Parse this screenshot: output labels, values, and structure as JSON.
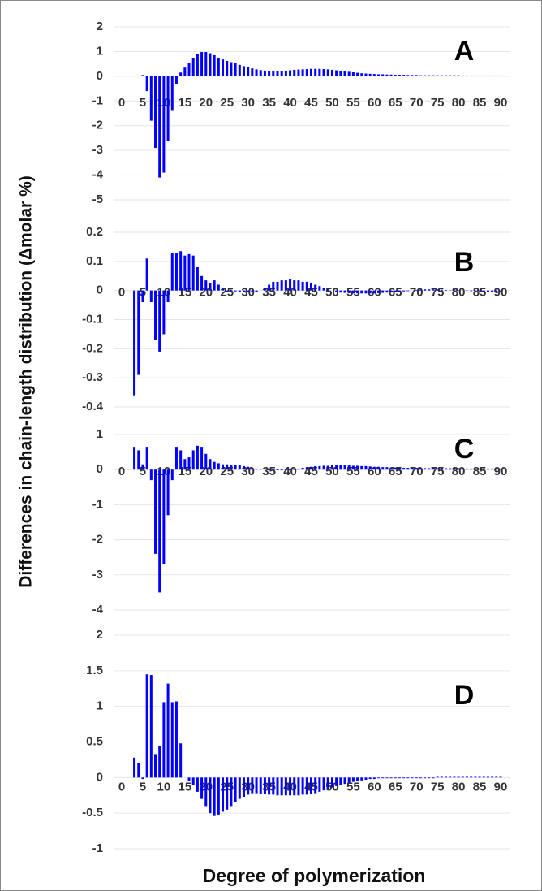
{
  "y_axis_label": "Differences in chain-length distribution  (Δmolar %)",
  "x_axis_label": "Degree of polymerization",
  "chart_data": [
    {
      "type": "bar",
      "annotation": "A",
      "color": "#0000ff",
      "grid": true,
      "xlim": [
        0,
        90
      ],
      "xticks": [
        0,
        5,
        10,
        15,
        20,
        25,
        30,
        35,
        40,
        45,
        50,
        55,
        60,
        65,
        70,
        75,
        80,
        85,
        90
      ],
      "ylim": [
        -5,
        2
      ],
      "yticks": [
        -5,
        -4,
        -3,
        -2,
        -1,
        0,
        1,
        2
      ],
      "x": [
        1,
        2,
        3,
        4,
        5,
        6,
        7,
        8,
        9,
        10,
        11,
        12,
        13,
        14,
        15,
        16,
        17,
        18,
        19,
        20,
        21,
        22,
        23,
        24,
        25,
        26,
        27,
        28,
        29,
        30,
        31,
        32,
        33,
        34,
        35,
        36,
        37,
        38,
        39,
        40,
        41,
        42,
        43,
        44,
        45,
        46,
        47,
        48,
        49,
        50,
        51,
        52,
        53,
        54,
        55,
        56,
        57,
        58,
        59,
        60,
        61,
        62,
        63,
        64,
        65,
        66,
        67,
        68,
        69,
        70,
        71,
        72,
        73,
        74,
        75,
        76,
        77,
        78,
        79,
        80,
        81,
        82,
        83,
        84,
        85,
        86,
        87,
        88,
        89,
        90
      ],
      "values": [
        0,
        0,
        0,
        0,
        0.05,
        -0.6,
        -1.8,
        -2.9,
        -4.1,
        -3.9,
        -2.6,
        -1.4,
        -0.3,
        0.15,
        0.35,
        0.55,
        0.75,
        0.9,
        0.98,
        0.98,
        0.93,
        0.85,
        0.75,
        0.68,
        0.62,
        0.57,
        0.52,
        0.46,
        0.41,
        0.36,
        0.32,
        0.28,
        0.25,
        0.23,
        0.22,
        0.21,
        0.21,
        0.22,
        0.23,
        0.24,
        0.26,
        0.27,
        0.28,
        0.29,
        0.3,
        0.3,
        0.3,
        0.29,
        0.28,
        0.26,
        0.24,
        0.22,
        0.2,
        0.18,
        0.16,
        0.14,
        0.12,
        0.11,
        0.1,
        0.09,
        0.08,
        0.08,
        0.07,
        0.07,
        0.06,
        0.06,
        0.06,
        0.05,
        0.05,
        0.05,
        0.04,
        0.04,
        0.04,
        0.04,
        0.04,
        0.04,
        0.04,
        0.04,
        0.04,
        0.04,
        0.03,
        0.03,
        0.03,
        0.03,
        0.03,
        0.03,
        0.03,
        0.03,
        0.03,
        0.03
      ]
    },
    {
      "type": "bar",
      "annotation": "B",
      "color": "#0000ff",
      "grid": true,
      "xlim": [
        0,
        90
      ],
      "xticks": [
        0,
        5,
        10,
        15,
        20,
        25,
        30,
        35,
        40,
        45,
        50,
        55,
        60,
        65,
        70,
        75,
        80,
        85,
        90
      ],
      "ylim": [
        -0.4,
        0.2
      ],
      "yticks": [
        -0.4,
        -0.3,
        -0.2,
        -0.1,
        0,
        0.1,
        0.2
      ],
      "x": [
        1,
        2,
        3,
        4,
        5,
        6,
        7,
        8,
        9,
        10,
        11,
        12,
        13,
        14,
        15,
        16,
        17,
        18,
        19,
        20,
        21,
        22,
        23,
        24,
        25,
        26,
        27,
        28,
        29,
        30,
        31,
        32,
        33,
        34,
        35,
        36,
        37,
        38,
        39,
        40,
        41,
        42,
        43,
        44,
        45,
        46,
        47,
        48,
        49,
        50,
        51,
        52,
        53,
        54,
        55,
        56,
        57,
        58,
        59,
        60,
        61,
        62,
        63,
        64,
        65,
        66,
        67,
        68,
        69,
        70,
        71,
        72,
        73,
        74,
        75,
        76,
        77,
        78,
        79,
        80,
        81,
        82,
        83,
        84,
        85,
        86,
        87,
        88,
        89,
        90
      ],
      "values": [
        0,
        0,
        -0.36,
        -0.29,
        -0.04,
        0.11,
        -0.04,
        -0.17,
        -0.21,
        -0.15,
        -0.04,
        0.13,
        0.13,
        0.135,
        0.12,
        0.125,
        0.12,
        0.08,
        0.05,
        0.035,
        0.025,
        0.035,
        0.02,
        0.005,
        -0.005,
        0.003,
        -0.003,
        -0.005,
        -0.006,
        -0.005,
        -0.005,
        -0.004,
        0,
        0.01,
        0.02,
        0.03,
        0.03,
        0.035,
        0.035,
        0.04,
        0.035,
        0.035,
        0.03,
        0.03,
        0.025,
        0.02,
        0.015,
        0.01,
        0.005,
        0,
        -0.005,
        -0.007,
        -0.008,
        -0.009,
        -0.01,
        -0.01,
        -0.01,
        -0.01,
        -0.01,
        -0.01,
        -0.009,
        -0.008,
        -0.007,
        -0.006,
        -0.005,
        -0.004,
        -0.003,
        -0.002,
        0,
        0.002,
        0.003,
        0.004,
        0.004,
        0.004,
        0.004,
        0.003,
        0.002,
        0.001,
        0.004,
        0.001,
        0,
        -0.001,
        -0.002,
        -0.002,
        -0.003,
        -0.003,
        -0.004,
        -0.004,
        -0.005,
        -0.003
      ]
    },
    {
      "type": "bar",
      "annotation": "C",
      "color": "#0000ff",
      "grid": true,
      "xlim": [
        0,
        90
      ],
      "xticks": [
        0,
        5,
        10,
        15,
        20,
        25,
        30,
        35,
        40,
        45,
        50,
        55,
        60,
        65,
        70,
        75,
        80,
        85,
        90
      ],
      "ylim": [
        -4,
        1
      ],
      "yticks": [
        -4,
        -3,
        -2,
        -1,
        0,
        1
      ],
      "x": [
        1,
        2,
        3,
        4,
        5,
        6,
        7,
        8,
        9,
        10,
        11,
        12,
        13,
        14,
        15,
        16,
        17,
        18,
        19,
        20,
        21,
        22,
        23,
        24,
        25,
        26,
        27,
        28,
        29,
        30,
        31,
        32,
        33,
        34,
        35,
        36,
        37,
        38,
        39,
        40,
        41,
        42,
        43,
        44,
        45,
        46,
        47,
        48,
        49,
        50,
        51,
        52,
        53,
        54,
        55,
        56,
        57,
        58,
        59,
        60,
        61,
        62,
        63,
        64,
        65,
        66,
        67,
        68,
        69,
        70,
        71,
        72,
        73,
        74,
        75,
        76,
        77,
        78,
        79,
        80,
        81,
        82,
        83,
        84,
        85,
        86,
        87,
        88,
        89,
        90
      ],
      "values": [
        0,
        0,
        0.65,
        0.55,
        0.15,
        0.65,
        -0.3,
        -2.4,
        -3.5,
        -2.7,
        -1.3,
        -0.3,
        0.65,
        0.55,
        0.3,
        0.35,
        0.55,
        0.68,
        0.65,
        0.45,
        0.3,
        0.22,
        0.18,
        0.15,
        0.15,
        0.14,
        0.13,
        0.12,
        0.1,
        0.08,
        0.05,
        0.03,
        0.01,
        0,
        -0.02,
        -0.02,
        -0.02,
        -0.02,
        -0.02,
        -0.02,
        -0.01,
        0.03,
        0.05,
        0.07,
        0.08,
        0.1,
        0.1,
        0.11,
        0.11,
        0.12,
        0.12,
        0.12,
        0.12,
        0.12,
        0.11,
        0.11,
        0.1,
        0.1,
        0.09,
        0.08,
        0.08,
        0.07,
        0.07,
        0.06,
        0.06,
        0.05,
        0.05,
        0.05,
        0.05,
        0.05,
        0.04,
        0.04,
        0.04,
        0.04,
        0.04,
        0.04,
        0.04,
        0.04,
        0.04,
        0.04,
        0.03,
        0.03,
        0.03,
        0.03,
        0.03,
        0.03,
        0.03,
        0.03,
        0.03,
        0.03
      ]
    },
    {
      "type": "bar",
      "annotation": "D",
      "color": "#0000ff",
      "grid": true,
      "xlim": [
        0,
        90
      ],
      "xticks": [
        0,
        5,
        10,
        15,
        20,
        25,
        30,
        35,
        40,
        45,
        50,
        55,
        60,
        65,
        70,
        75,
        80,
        85,
        90
      ],
      "ylim": [
        -1,
        2
      ],
      "yticks": [
        -1,
        -0.5,
        0,
        0.5,
        1,
        1.5,
        2
      ],
      "x": [
        1,
        2,
        3,
        4,
        5,
        6,
        7,
        8,
        9,
        10,
        11,
        12,
        13,
        14,
        15,
        16,
        17,
        18,
        19,
        20,
        21,
        22,
        23,
        24,
        25,
        26,
        27,
        28,
        29,
        30,
        31,
        32,
        33,
        34,
        35,
        36,
        37,
        38,
        39,
        40,
        41,
        42,
        43,
        44,
        45,
        46,
        47,
        48,
        49,
        50,
        51,
        52,
        53,
        54,
        55,
        56,
        57,
        58,
        59,
        60,
        61,
        62,
        63,
        64,
        65,
        66,
        67,
        68,
        69,
        70,
        71,
        72,
        73,
        74,
        75,
        76,
        77,
        78,
        79,
        80,
        81,
        82,
        83,
        84,
        85,
        86,
        87,
        88,
        89,
        90
      ],
      "values": [
        0,
        0,
        0.28,
        0.2,
        -0.02,
        1.45,
        1.44,
        0.33,
        0.44,
        1.06,
        1.32,
        1.06,
        1.07,
        0.48,
        0,
        -0.05,
        -0.1,
        -0.2,
        -0.3,
        -0.4,
        -0.5,
        -0.54,
        -0.52,
        -0.48,
        -0.45,
        -0.4,
        -0.35,
        -0.3,
        -0.27,
        -0.24,
        -0.22,
        -0.22,
        -0.23,
        -0.23,
        -0.24,
        -0.24,
        -0.25,
        -0.25,
        -0.25,
        -0.25,
        -0.25,
        -0.25,
        -0.24,
        -0.24,
        -0.23,
        -0.22,
        -0.2,
        -0.18,
        -0.16,
        -0.14,
        -0.12,
        -0.1,
        -0.09,
        -0.07,
        -0.06,
        -0.05,
        -0.04,
        -0.03,
        -0.02,
        -0.02,
        -0.01,
        -0.01,
        -0.01,
        -0.01,
        -0.01,
        -0.01,
        -0.01,
        -0.01,
        -0.01,
        -0.01,
        -0.01,
        -0.01,
        -0.01,
        -0.01,
        0.01,
        0.01,
        0.01,
        0.01,
        0.01,
        0.01,
        0.01,
        0.01,
        0.01,
        0.01,
        0.01,
        0.01,
        0.01,
        0.01,
        0.01,
        0.01
      ]
    }
  ]
}
